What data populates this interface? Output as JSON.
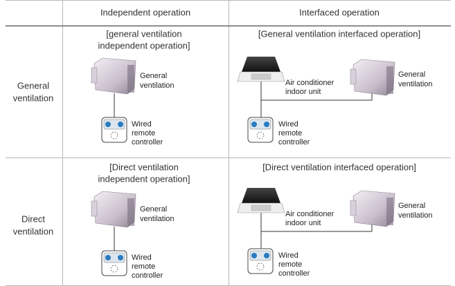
{
  "header": {
    "columns": [
      "Independent operation",
      "Interfaced operation"
    ]
  },
  "rows": [
    {
      "label": [
        "General",
        "ventilation"
      ],
      "independent": {
        "title": [
          "[general ventilation",
          "independent operation]"
        ],
        "unit": [
          "General",
          "ventilation"
        ],
        "remote": [
          "Wired",
          "remote",
          "controller"
        ]
      },
      "interfaced": {
        "title": [
          "[General ventilation interfaced operation]"
        ],
        "ac": [
          "Air conditioner",
          "indoor unit"
        ],
        "unit": [
          "General",
          "ventilation"
        ],
        "remote": [
          "Wired",
          "remote",
          "controller"
        ]
      }
    },
    {
      "label": [
        "Direct",
        "ventilation"
      ],
      "independent": {
        "title": [
          "[Direct ventilation",
          "independent operation]"
        ],
        "unit": [
          "General",
          "ventilation"
        ],
        "remote": [
          "Wired",
          "remote",
          "controller"
        ]
      },
      "interfaced": {
        "title": [
          "[Direct ventilation interfaced operation]"
        ],
        "ac": [
          "Air conditioner",
          "indoor unit"
        ],
        "unit": [
          "General",
          "ventilation"
        ],
        "remote": [
          "Wired",
          "remote",
          "controller"
        ]
      }
    }
  ]
}
